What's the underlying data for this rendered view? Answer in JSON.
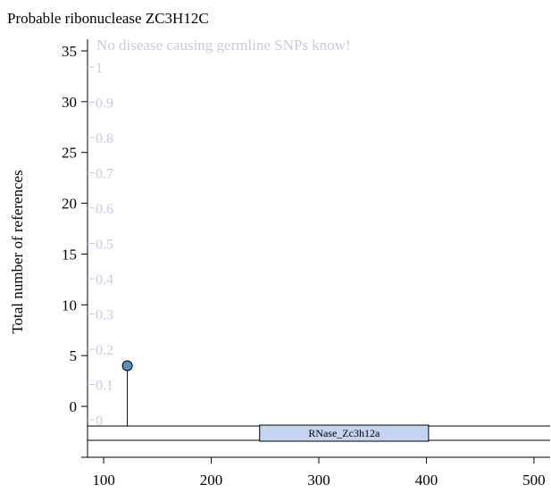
{
  "chart_data": {
    "type": "lollipop",
    "title": "Probable ribonuclease ZC3H12C",
    "ylabel": "Total number of references",
    "xlabel": "",
    "xlim": [
      85,
      515
    ],
    "ylim": [
      0,
      35
    ],
    "x_ticks": [
      100,
      200,
      300,
      400,
      500
    ],
    "y_ticks": [
      0,
      5,
      10,
      15,
      20,
      25,
      30,
      35
    ],
    "secondary_y_ticks": [
      "0",
      "0.1",
      "0.2",
      "0.3",
      "0.4",
      "0.5",
      "0.6",
      "0.7",
      "0.8",
      "0.9",
      "1"
    ],
    "annotation": "No disease causing germline SNPs know!",
    "points": [
      {
        "x": 122,
        "y": 4
      }
    ],
    "domains": [
      {
        "label": "RNase_Zc3h12a",
        "start": 245,
        "end": 402
      }
    ],
    "colors": {
      "point": "#5b8fc9",
      "domain_fill": "#c6d4f1",
      "secondary_text": "#c9c9e6",
      "axis": "#000000"
    }
  }
}
